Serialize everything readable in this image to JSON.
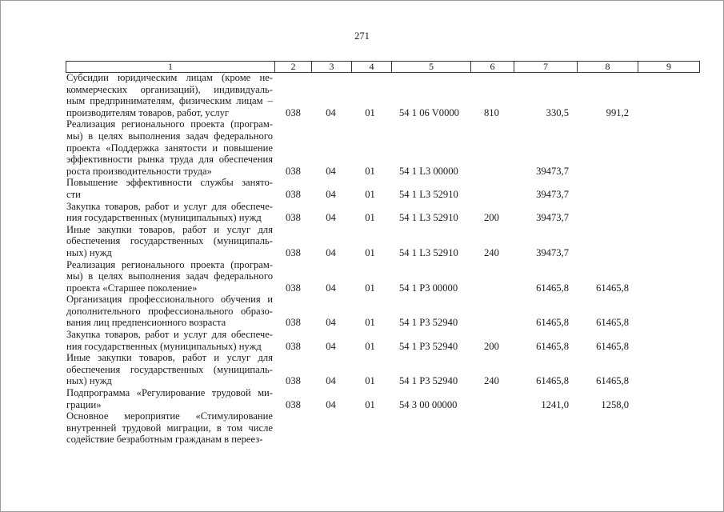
{
  "page_number": "271",
  "header": [
    "1",
    "2",
    "3",
    "4",
    "5",
    "6",
    "7",
    "8",
    "9"
  ],
  "rows": [
    {
      "lines": [
        "Субсидии юридическим лицам (кроме не-",
        "коммерческих организаций), индивидуаль-",
        "ным предпринимателям, физическим лицам –",
        "производителям товаров, работ, услуг"
      ],
      "c2": "038",
      "c3": "04",
      "c4": "01",
      "c5": "54 1 06 V0000",
      "c6": "810",
      "c7": "330,5",
      "c8": "991,2",
      "c9": ""
    },
    {
      "lines": [
        "Реализация регионального проекта (програм-",
        "мы) в целях выполнения задач федерального",
        "проекта «Поддержка занятости и повышение",
        "эффективности рынка труда для обеспечения",
        "роста производительности труда»"
      ],
      "c2": "038",
      "c3": "04",
      "c4": "01",
      "c5": "54 1 L3 00000",
      "c6": "",
      "c7": "39473,7",
      "c8": "",
      "c9": ""
    },
    {
      "lines": [
        "Повышение эффективности службы занято-",
        "сти"
      ],
      "c2": "038",
      "c3": "04",
      "c4": "01",
      "c5": "54 1 L3 52910",
      "c6": "",
      "c7": "39473,7",
      "c8": "",
      "c9": ""
    },
    {
      "lines": [
        "Закупка товаров, работ и услуг для обеспече-",
        "ния государственных (муниципальных) нужд"
      ],
      "c2": "038",
      "c3": "04",
      "c4": "01",
      "c5": "54 1 L3 52910",
      "c6": "200",
      "c7": "39473,7",
      "c8": "",
      "c9": ""
    },
    {
      "lines": [
        "Иные закупки товаров, работ и услуг для",
        "обеспечения государственных (муниципаль-",
        "ных) нужд"
      ],
      "c2": "038",
      "c3": "04",
      "c4": "01",
      "c5": "54 1 L3 52910",
      "c6": "240",
      "c7": "39473,7",
      "c8": "",
      "c9": ""
    },
    {
      "lines": [
        "Реализация регионального проекта (програм-",
        "мы) в целях выполнения задач федерального",
        "проекта «Старшее поколение»"
      ],
      "c2": "038",
      "c3": "04",
      "c4": "01",
      "c5": "54 1 P3 00000",
      "c6": "",
      "c7": "61465,8",
      "c8": "61465,8",
      "c9": ""
    },
    {
      "lines": [
        "Организация профессионального обучения и",
        "дополнительного профессионального образо-",
        "вания лиц предпенсионного возраста"
      ],
      "c2": "038",
      "c3": "04",
      "c4": "01",
      "c5": "54 1 P3 52940",
      "c6": "",
      "c7": "61465,8",
      "c8": "61465,8",
      "c9": ""
    },
    {
      "lines": [
        "Закупка товаров, работ и услуг для обеспече-",
        "ния государственных (муниципальных) нужд"
      ],
      "c2": "038",
      "c3": "04",
      "c4": "01",
      "c5": "54 1 P3 52940",
      "c6": "200",
      "c7": "61465,8",
      "c8": "61465,8",
      "c9": ""
    },
    {
      "lines": [
        "Иные закупки товаров, работ и услуг для",
        "обеспечения государственных (муниципаль-",
        "ных) нужд"
      ],
      "c2": "038",
      "c3": "04",
      "c4": "01",
      "c5": "54 1 P3 52940",
      "c6": "240",
      "c7": "61465,8",
      "c8": "61465,8",
      "c9": ""
    },
    {
      "lines": [
        "Подпрограмма «Регулирование трудовой ми-",
        "грации»"
      ],
      "c2": "038",
      "c3": "04",
      "c4": "01",
      "c5": "54 3 00 00000",
      "c6": "",
      "c7": "1241,0",
      "c8": "1258,0",
      "c9": ""
    },
    {
      "lines": [
        "Основное мероприятие «Стимулирование",
        "внутренней трудовой миграции, в том числе",
        "содействие безработным гражданам в переез-"
      ],
      "c2": "",
      "c3": "",
      "c4": "",
      "c5": "",
      "c6": "",
      "c7": "",
      "c8": "",
      "c9": ""
    }
  ]
}
